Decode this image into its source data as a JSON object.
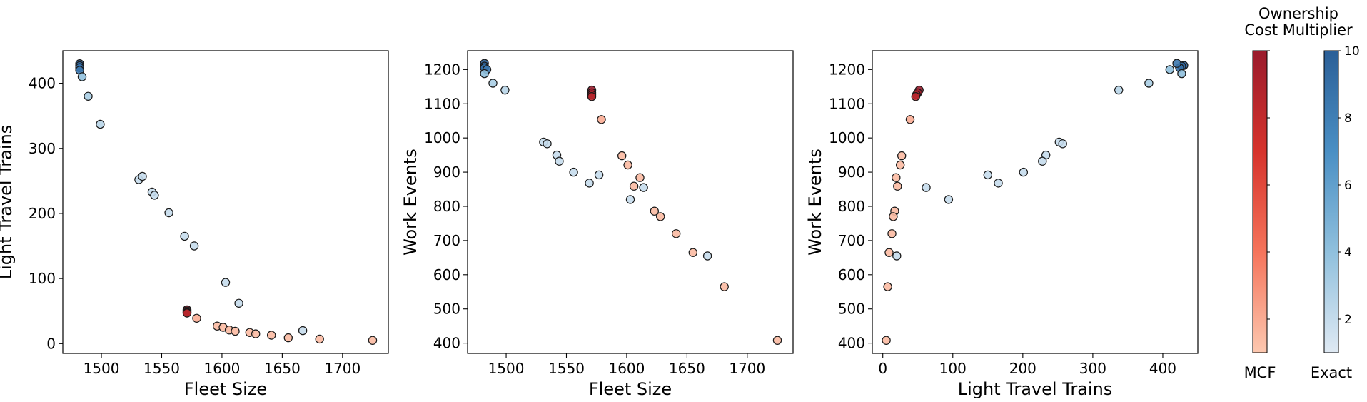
{
  "colorbar": {
    "title_line1": "Ownership",
    "title_line2": "Cost Multiplier",
    "range": [
      1,
      10
    ],
    "ticks": [
      2,
      4,
      6,
      8,
      10
    ],
    "tick_labels": [
      "2",
      "4",
      "6",
      "8",
      "10"
    ],
    "bars": [
      {
        "name": "MCF",
        "colors": [
          "#fcc8b0",
          "#f5745b",
          "#d6332c",
          "#9a1b2c"
        ]
      },
      {
        "name": "Exact",
        "colors": [
          "#dfe9f3",
          "#90c0dd",
          "#4a8fc4",
          "#2b5f97"
        ]
      }
    ]
  },
  "colors": {
    "mcf_light": "#f7b69c",
    "mcf_dark": "#8b0e1c",
    "exact_light": "#dde8f3",
    "exact_dark": "#24528c"
  },
  "chart_data": [
    {
      "type": "scatter",
      "xlabel": "Fleet Size",
      "ylabel": "Light Travel Trains",
      "xlim": [
        1468,
        1738
      ],
      "ylim": [
        -15,
        450
      ],
      "xticks": [
        1500,
        1550,
        1600,
        1650,
        1700
      ],
      "xtick_labels": [
        "1500",
        "1550",
        "1600",
        "1650",
        "1700"
      ],
      "yticks": [
        0,
        100,
        200,
        300,
        400
      ],
      "ytick_labels": [
        "0",
        "100",
        "200",
        "300",
        "400"
      ],
      "series": [
        {
          "method": "MCF",
          "points": [
            {
              "x": 1571,
              "y": 52,
              "c": 10
            },
            {
              "x": 1571,
              "y": 50,
              "c": 9.5
            },
            {
              "x": 1571,
              "y": 48,
              "c": 9
            },
            {
              "x": 1571,
              "y": 47,
              "c": 8.5
            },
            {
              "x": 1579,
              "y": 39,
              "c": 2
            },
            {
              "x": 1596,
              "y": 27,
              "c": 1.5
            },
            {
              "x": 1601,
              "y": 25,
              "c": 1.5
            },
            {
              "x": 1606,
              "y": 21,
              "c": 1.5
            },
            {
              "x": 1611,
              "y": 19,
              "c": 1.5
            },
            {
              "x": 1623,
              "y": 17,
              "c": 1.5
            },
            {
              "x": 1628,
              "y": 15,
              "c": 1.5
            },
            {
              "x": 1641,
              "y": 13,
              "c": 1.5
            },
            {
              "x": 1655,
              "y": 9,
              "c": 1.5
            },
            {
              "x": 1681,
              "y": 7,
              "c": 1.5
            },
            {
              "x": 1725,
              "y": 5,
              "c": 1.5
            }
          ]
        },
        {
          "method": "Exact",
          "points": [
            {
              "x": 1482,
              "y": 430,
              "c": 10
            },
            {
              "x": 1482,
              "y": 427,
              "c": 9.5
            },
            {
              "x": 1482,
              "y": 424,
              "c": 9
            },
            {
              "x": 1482,
              "y": 420,
              "c": 8.5
            },
            {
              "x": 1484,
              "y": 410,
              "c": 4
            },
            {
              "x": 1489,
              "y": 380,
              "c": 3
            },
            {
              "x": 1499,
              "y": 337,
              "c": 2.5
            },
            {
              "x": 1531,
              "y": 252,
              "c": 2
            },
            {
              "x": 1534,
              "y": 257,
              "c": 2
            },
            {
              "x": 1542,
              "y": 233,
              "c": 2
            },
            {
              "x": 1544,
              "y": 228,
              "c": 2
            },
            {
              "x": 1556,
              "y": 201,
              "c": 2
            },
            {
              "x": 1569,
              "y": 165,
              "c": 2
            },
            {
              "x": 1577,
              "y": 150,
              "c": 2
            },
            {
              "x": 1603,
              "y": 94,
              "c": 2
            },
            {
              "x": 1614,
              "y": 62,
              "c": 2
            },
            {
              "x": 1667,
              "y": 20,
              "c": 2
            }
          ]
        }
      ]
    },
    {
      "type": "scatter",
      "xlabel": "Fleet Size",
      "ylabel": "Work Events",
      "xlim": [
        1468,
        1738
      ],
      "ylim": [
        370,
        1255
      ],
      "xticks": [
        1500,
        1550,
        1600,
        1650,
        1700
      ],
      "xtick_labels": [
        "1500",
        "1550",
        "1600",
        "1650",
        "1700"
      ],
      "yticks": [
        400,
        500,
        600,
        700,
        800,
        900,
        1000,
        1100,
        1200
      ],
      "ytick_labels": [
        "400",
        "500",
        "600",
        "700",
        "800",
        "900",
        "1000",
        "1100",
        "1200"
      ],
      "series": [
        {
          "method": "MCF",
          "points": [
            {
              "x": 1571,
              "y": 1140,
              "c": 10
            },
            {
              "x": 1571,
              "y": 1132,
              "c": 9.5
            },
            {
              "x": 1571,
              "y": 1126,
              "c": 9
            },
            {
              "x": 1571,
              "y": 1121,
              "c": 8.5
            },
            {
              "x": 1579,
              "y": 1054,
              "c": 2
            },
            {
              "x": 1596,
              "y": 948,
              "c": 1.5
            },
            {
              "x": 1601,
              "y": 921,
              "c": 1.5
            },
            {
              "x": 1611,
              "y": 884,
              "c": 1.5
            },
            {
              "x": 1606,
              "y": 859,
              "c": 1.5
            },
            {
              "x": 1623,
              "y": 786,
              "c": 1.5
            },
            {
              "x": 1628,
              "y": 770,
              "c": 1.5
            },
            {
              "x": 1641,
              "y": 720,
              "c": 1.5
            },
            {
              "x": 1655,
              "y": 665,
              "c": 1.5
            },
            {
              "x": 1681,
              "y": 565,
              "c": 1.5
            },
            {
              "x": 1725,
              "y": 408,
              "c": 1.5
            }
          ]
        },
        {
          "method": "Exact",
          "points": [
            {
              "x": 1482,
              "y": 1218,
              "c": 10
            },
            {
              "x": 1482,
              "y": 1210,
              "c": 9.5
            },
            {
              "x": 1482,
              "y": 1205,
              "c": 9
            },
            {
              "x": 1484,
              "y": 1200,
              "c": 8.5
            },
            {
              "x": 1482,
              "y": 1188,
              "c": 4
            },
            {
              "x": 1489,
              "y": 1160,
              "c": 3
            },
            {
              "x": 1499,
              "y": 1140,
              "c": 2.5
            },
            {
              "x": 1531,
              "y": 988,
              "c": 2
            },
            {
              "x": 1534,
              "y": 983,
              "c": 2
            },
            {
              "x": 1542,
              "y": 950,
              "c": 2
            },
            {
              "x": 1544,
              "y": 932,
              "c": 2
            },
            {
              "x": 1556,
              "y": 900,
              "c": 2
            },
            {
              "x": 1577,
              "y": 892,
              "c": 2
            },
            {
              "x": 1569,
              "y": 868,
              "c": 2
            },
            {
              "x": 1614,
              "y": 855,
              "c": 2
            },
            {
              "x": 1603,
              "y": 820,
              "c": 2
            },
            {
              "x": 1667,
              "y": 655,
              "c": 2
            }
          ]
        }
      ]
    },
    {
      "type": "scatter",
      "xlabel": "Light Travel Trains",
      "ylabel": "Work Events",
      "xlim": [
        -15,
        450
      ],
      "ylim": [
        370,
        1255
      ],
      "xticks": [
        0,
        100,
        200,
        300,
        400
      ],
      "xtick_labels": [
        "0",
        "100",
        "200",
        "300",
        "400"
      ],
      "yticks": [
        400,
        500,
        600,
        700,
        800,
        900,
        1000,
        1100,
        1200
      ],
      "ytick_labels": [
        "400",
        "500",
        "600",
        "700",
        "800",
        "900",
        "1000",
        "1100",
        "1200"
      ],
      "series": [
        {
          "method": "MCF",
          "points": [
            {
              "x": 52,
              "y": 1140,
              "c": 10
            },
            {
              "x": 50,
              "y": 1132,
              "c": 9.5
            },
            {
              "x": 48,
              "y": 1126,
              "c": 9
            },
            {
              "x": 47,
              "y": 1121,
              "c": 8.5
            },
            {
              "x": 39,
              "y": 1054,
              "c": 2
            },
            {
              "x": 27,
              "y": 948,
              "c": 1.5
            },
            {
              "x": 25,
              "y": 921,
              "c": 1.5
            },
            {
              "x": 19,
              "y": 884,
              "c": 1.5
            },
            {
              "x": 21,
              "y": 859,
              "c": 1.5
            },
            {
              "x": 17,
              "y": 786,
              "c": 1.5
            },
            {
              "x": 15,
              "y": 770,
              "c": 1.5
            },
            {
              "x": 13,
              "y": 720,
              "c": 1.5
            },
            {
              "x": 9,
              "y": 665,
              "c": 1.5
            },
            {
              "x": 7,
              "y": 565,
              "c": 1.5
            },
            {
              "x": 5,
              "y": 408,
              "c": 1.5
            }
          ]
        },
        {
          "method": "Exact",
          "points": [
            {
              "x": 430,
              "y": 1212,
              "c": 10
            },
            {
              "x": 427,
              "y": 1210,
              "c": 9.5
            },
            {
              "x": 424,
              "y": 1205,
              "c": 9
            },
            {
              "x": 420,
              "y": 1218,
              "c": 8.5
            },
            {
              "x": 410,
              "y": 1200,
              "c": 4
            },
            {
              "x": 427,
              "y": 1188,
              "c": 4
            },
            {
              "x": 380,
              "y": 1160,
              "c": 3
            },
            {
              "x": 337,
              "y": 1140,
              "c": 2.5
            },
            {
              "x": 252,
              "y": 988,
              "c": 2
            },
            {
              "x": 257,
              "y": 983,
              "c": 2
            },
            {
              "x": 233,
              "y": 950,
              "c": 2
            },
            {
              "x": 228,
              "y": 932,
              "c": 2
            },
            {
              "x": 201,
              "y": 900,
              "c": 2
            },
            {
              "x": 150,
              "y": 892,
              "c": 2
            },
            {
              "x": 165,
              "y": 868,
              "c": 2
            },
            {
              "x": 62,
              "y": 855,
              "c": 2
            },
            {
              "x": 94,
              "y": 820,
              "c": 2
            },
            {
              "x": 20,
              "y": 655,
              "c": 2
            }
          ]
        }
      ]
    }
  ]
}
